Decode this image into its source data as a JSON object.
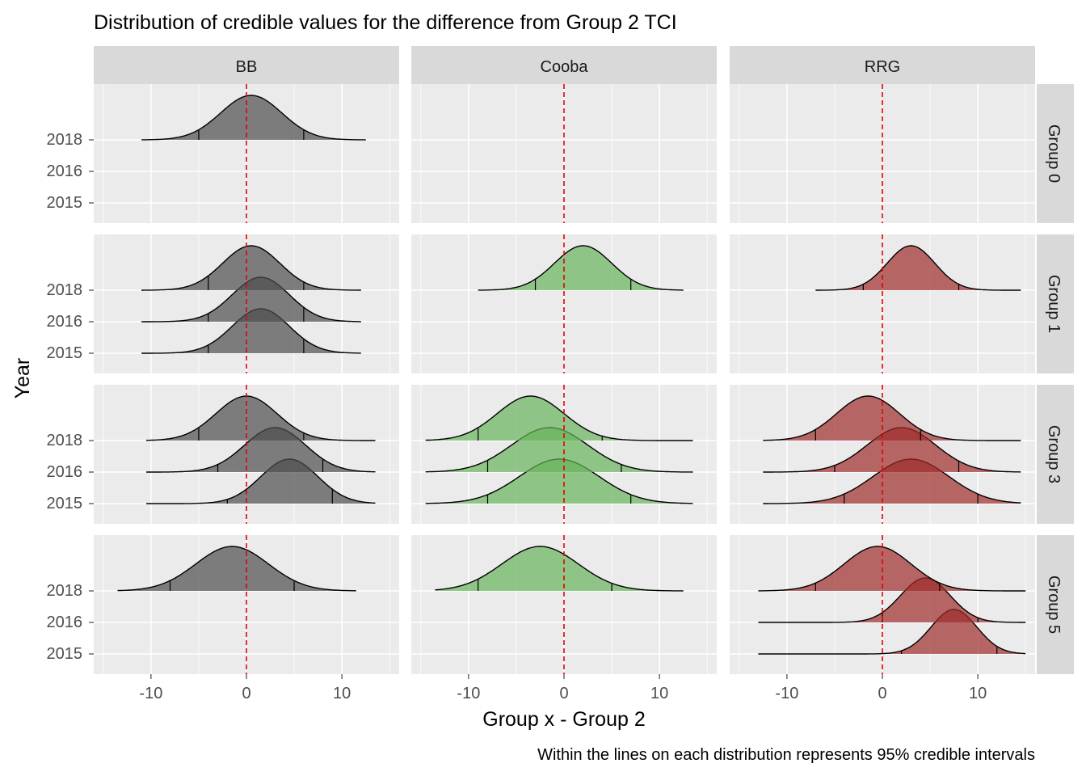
{
  "chart_data": {
    "type": "ridgeline",
    "title": "Distribution of credible values for the difference from Group 2 TCI",
    "xlabel": "Group x - Group 2",
    "ylabel": "Year",
    "caption": "Within the lines on each distribution represents 95% credible intervals",
    "xlim": [
      -16,
      16
    ],
    "x_ticks": [
      "-10",
      "0",
      "10"
    ],
    "x_tick_values": [
      -10,
      0,
      10
    ],
    "reference_line": 0,
    "y_ticks": [
      "2018",
      "2016",
      "2015"
    ],
    "facet_columns": [
      "BB",
      "Cooba",
      "RRG"
    ],
    "facet_rows": [
      "Group 0",
      "Group 1",
      "Group 3",
      "Group 5"
    ],
    "colors": {
      "BB": "#4d4d4d",
      "Cooba": "#66b35a",
      "RRG": "#a02c2c",
      "reference": "#e00000",
      "panel": "#ebebeb",
      "strip": "#d9d9d9"
    },
    "distributions": [
      {
        "column": "BB",
        "row": "Group 0",
        "year": "2018",
        "mode": 0.5,
        "sd": 3.2,
        "min": -11,
        "max": 12.5,
        "ci": [
          -5,
          6
        ]
      },
      {
        "column": "BB",
        "row": "Group 1",
        "year": "2018",
        "mode": 0.5,
        "sd": 3.0,
        "min": -11,
        "max": 12,
        "ci": [
          -4,
          6
        ]
      },
      {
        "column": "BB",
        "row": "Group 1",
        "year": "2016",
        "mode": 1.5,
        "sd": 3.0,
        "min": -11,
        "max": 12,
        "ci": [
          -4,
          6
        ]
      },
      {
        "column": "BB",
        "row": "Group 1",
        "year": "2015",
        "mode": 1.5,
        "sd": 3.0,
        "min": -11,
        "max": 12,
        "ci": [
          -4,
          6
        ]
      },
      {
        "column": "Cooba",
        "row": "Group 1",
        "year": "2018",
        "mode": 2.0,
        "sd": 3.0,
        "min": -9,
        "max": 12.5,
        "ci": [
          -3,
          7
        ]
      },
      {
        "column": "RRG",
        "row": "Group 1",
        "year": "2018",
        "mode": 3.0,
        "sd": 2.5,
        "min": -7,
        "max": 14.5,
        "ci": [
          -2,
          8
        ]
      },
      {
        "column": "BB",
        "row": "Group 3",
        "year": "2018",
        "mode": 0.0,
        "sd": 3.2,
        "min": -10.5,
        "max": 13.5,
        "ci": [
          -5,
          6
        ]
      },
      {
        "column": "BB",
        "row": "Group 3",
        "year": "2016",
        "mode": 3.0,
        "sd": 3.2,
        "min": -10.5,
        "max": 13.5,
        "ci": [
          -3,
          8
        ]
      },
      {
        "column": "BB",
        "row": "Group 3",
        "year": "2015",
        "mode": 4.5,
        "sd": 3.0,
        "min": -10.5,
        "max": 13.5,
        "ci": [
          -2,
          9
        ]
      },
      {
        "column": "Cooba",
        "row": "Group 3",
        "year": "2018",
        "mode": -3.5,
        "sd": 3.5,
        "min": -14.5,
        "max": 13.5,
        "ci": [
          -9,
          4
        ]
      },
      {
        "column": "Cooba",
        "row": "Group 3",
        "year": "2016",
        "mode": -1.5,
        "sd": 4.0,
        "min": -14.5,
        "max": 13.5,
        "ci": [
          -8,
          6
        ]
      },
      {
        "column": "Cooba",
        "row": "Group 3",
        "year": "2015",
        "mode": -0.5,
        "sd": 4.2,
        "min": -14.5,
        "max": 13.5,
        "ci": [
          -8,
          7
        ]
      },
      {
        "column": "RRG",
        "row": "Group 3",
        "year": "2018",
        "mode": -1.5,
        "sd": 3.3,
        "min": -12.5,
        "max": 14.5,
        "ci": [
          -7,
          4
        ]
      },
      {
        "column": "RRG",
        "row": "Group 3",
        "year": "2016",
        "mode": 2.0,
        "sd": 3.6,
        "min": -12.5,
        "max": 14.5,
        "ci": [
          -5,
          8
        ]
      },
      {
        "column": "RRG",
        "row": "Group 3",
        "year": "2015",
        "mode": 3.0,
        "sd": 4.0,
        "min": -12.5,
        "max": 14.5,
        "ci": [
          -4,
          10
        ]
      },
      {
        "column": "BB",
        "row": "Group 5",
        "year": "2018",
        "mode": -1.5,
        "sd": 3.8,
        "min": -13.5,
        "max": 11.5,
        "ci": [
          -8,
          5
        ]
      },
      {
        "column": "Cooba",
        "row": "Group 5",
        "year": "2018",
        "mode": -2.5,
        "sd": 4.0,
        "min": -13.5,
        "max": 12.5,
        "ci": [
          -9,
          5
        ]
      },
      {
        "column": "RRG",
        "row": "Group 5",
        "year": "2018",
        "mode": -0.5,
        "sd": 3.5,
        "min": -13,
        "max": 15,
        "ci": [
          -7,
          6
        ]
      },
      {
        "column": "RRG",
        "row": "Group 5",
        "year": "2016",
        "mode": 4.5,
        "sd": 2.6,
        "min": -13,
        "max": 15,
        "ci": [
          0,
          10
        ]
      },
      {
        "column": "RRG",
        "row": "Group 5",
        "year": "2015",
        "mode": 7.5,
        "sd": 2.4,
        "min": -13,
        "max": 15,
        "ci": [
          2,
          12
        ]
      }
    ]
  }
}
